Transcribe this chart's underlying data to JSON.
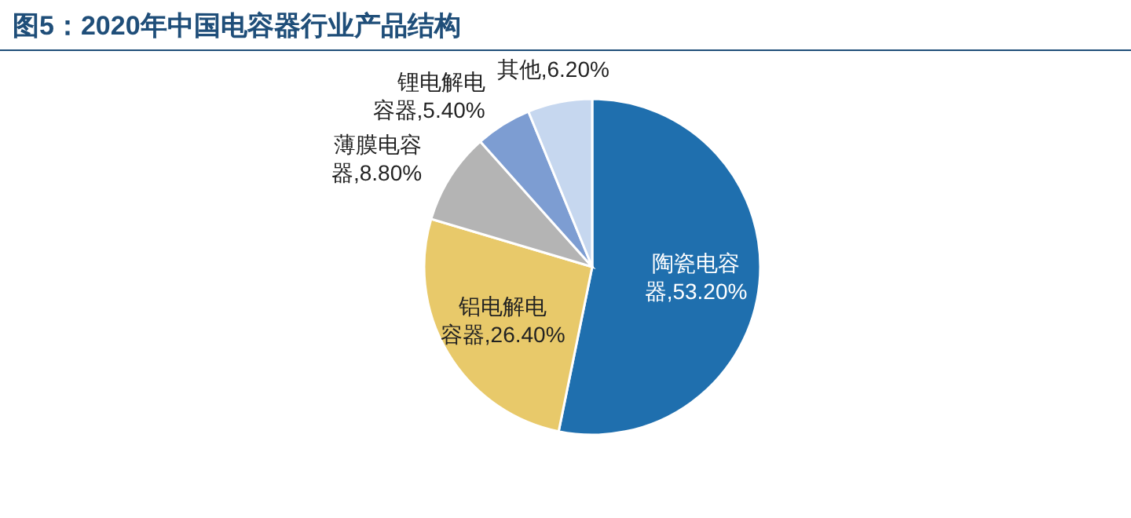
{
  "chart_data": {
    "type": "pie",
    "title": "图5：2020年中国电容器行业产品结构",
    "categories": [
      "陶瓷电容器",
      "铝电解电容器",
      "薄膜电容器",
      "锂电解电容器",
      "其他"
    ],
    "values": [
      53.2,
      26.4,
      8.8,
      5.4,
      6.2
    ],
    "value_labels": [
      "53.20%",
      "26.40%",
      "8.80%",
      "5.40%",
      "6.20%"
    ],
    "colors": [
      "#1f6fae",
      "#e8c96a",
      "#b4b4b4",
      "#7d9dd2",
      "#c6d7ef"
    ]
  }
}
